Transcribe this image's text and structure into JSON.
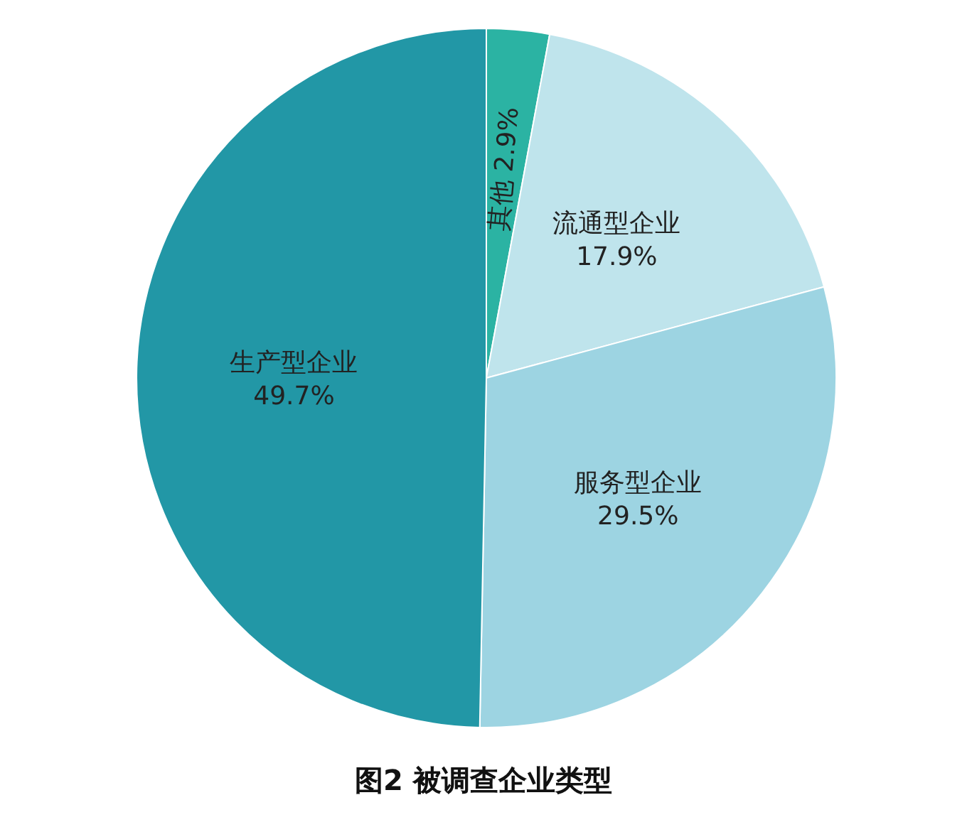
{
  "chart_data": {
    "type": "pie",
    "title": "图2  被调查企业类型",
    "categories": [
      "其他",
      "流通型企业",
      "服务型企业",
      "生产型企业"
    ],
    "values": [
      2.9,
      17.9,
      29.5,
      49.7
    ],
    "value_labels": [
      "2.9%",
      "17.9%",
      "29.5%",
      "49.7%"
    ],
    "colors": [
      "#2bb3a3",
      "#bfe4ec",
      "#9dd4e2",
      "#2297a6"
    ],
    "legend": false
  }
}
